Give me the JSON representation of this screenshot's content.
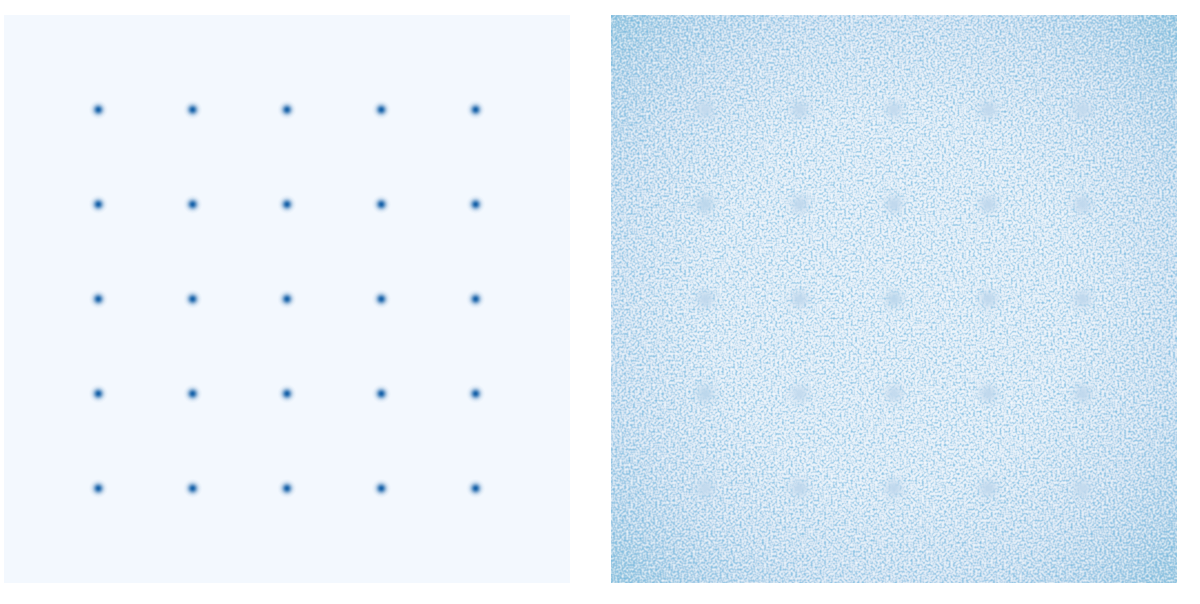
{
  "chart_data": [
    {
      "type": "heatmap",
      "color": "Blues",
      "tick_labels": false,
      "xlim": [
        0,
        120
      ],
      "ylim": [
        120,
        0
      ],
      "color_range": [
        0,
        1
      ],
      "x": [
        20,
        40,
        60,
        80,
        100
      ],
      "y": [
        20,
        40,
        60,
        80,
        100
      ],
      "values": [
        [
          0.8,
          0.8,
          0.8,
          0.8,
          0.8
        ],
        [
          0.8,
          0.8,
          0.8,
          0.8,
          0.8
        ],
        [
          0.8,
          0.8,
          0.8,
          0.8,
          0.8
        ],
        [
          0.8,
          0.8,
          0.8,
          0.8,
          0.8
        ],
        [
          0.8,
          0.8,
          0.8,
          0.8,
          0.8
        ]
      ],
      "background": {
        "center": 0.02,
        "edge": 0.02
      },
      "noise": 0
    },
    {
      "type": "heatmap",
      "color": "Blues",
      "tick_labels": false,
      "xlim": [
        0,
        120
      ],
      "ylim": [
        120,
        0
      ],
      "color_range": [
        0,
        1
      ],
      "x": [
        20,
        40,
        60,
        80,
        100
      ],
      "y": [
        20,
        40,
        60,
        80,
        100
      ],
      "values": [
        [
          0.14,
          0.15,
          0.14,
          0.15,
          0.14
        ],
        [
          0.16,
          0.15,
          0.15,
          0.15,
          0.15
        ],
        [
          0.15,
          0.15,
          0.16,
          0.15,
          0.15
        ],
        [
          0.16,
          0.14,
          0.14,
          0.15,
          0.15
        ],
        [
          0.14,
          0.15,
          0.15,
          0.15,
          0.14
        ]
      ],
      "background": {
        "center": 0.12,
        "edge": 0.38
      },
      "noise": 0.1
    }
  ]
}
